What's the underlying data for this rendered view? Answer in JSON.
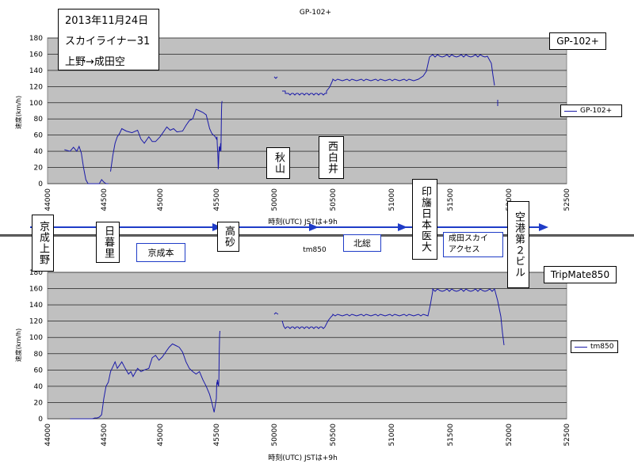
{
  "chart_data": [
    {
      "type": "line",
      "title": "GP-102+",
      "xlabel": "時刻(UTC) JSTは+9h",
      "ylabel": "速度(km/h)",
      "xlim": [
        44000,
        52500
      ],
      "ylim": [
        0,
        180
      ],
      "xticks": [
        "44000",
        "44500",
        "45000",
        "45500",
        "50000",
        "50500",
        "51000",
        "51500",
        "52000",
        "52500"
      ],
      "yticks": [
        "0",
        "20",
        "40",
        "60",
        "80",
        "100",
        "120",
        "140",
        "160",
        "180"
      ],
      "grid": true,
      "legend_position": "right",
      "series": [
        {
          "name": "GP-102+",
          "color": "#1a1aa8",
          "segments": [
            [
              [
                44150,
                42
              ],
              [
                44200,
                40
              ],
              [
                44230,
                45
              ],
              [
                44260,
                40
              ],
              [
                44280,
                46
              ],
              [
                44300,
                38
              ],
              [
                44320,
                20
              ],
              [
                44340,
                5
              ],
              [
                44360,
                0
              ],
              [
                44420,
                0
              ],
              [
                44460,
                0
              ],
              [
                44480,
                5
              ],
              [
                44500,
                2
              ],
              [
                44520,
                0
              ],
              [
                44540,
                0
              ]
            ],
            [
              [
                44560,
                15
              ],
              [
                44580,
                35
              ],
              [
                44600,
                50
              ],
              [
                44620,
                58
              ],
              [
                44640,
                62
              ],
              [
                44660,
                68
              ],
              [
                44700,
                65
              ],
              [
                44750,
                63
              ],
              [
                44800,
                66
              ],
              [
                44830,
                55
              ],
              [
                44860,
                50
              ],
              [
                44900,
                58
              ],
              [
                44930,
                52
              ],
              [
                44960,
                52
              ],
              [
                45000,
                58
              ],
              [
                45030,
                64
              ],
              [
                45060,
                70
              ],
              [
                45090,
                66
              ],
              [
                45120,
                68
              ],
              [
                45150,
                64
              ],
              [
                45200,
                65
              ],
              [
                45230,
                72
              ],
              [
                45260,
                78
              ],
              [
                45290,
                80
              ],
              [
                45320,
                92
              ],
              [
                45350,
                90
              ],
              [
                45380,
                88
              ],
              [
                45410,
                85
              ],
              [
                45440,
                68
              ],
              [
                45460,
                62
              ],
              [
                45490,
                58
              ],
              [
                45520,
                55
              ],
              [
                45550,
                58
              ],
              [
                45570,
                50
              ],
              [
                45590,
                42
              ],
              [
                45610,
                38
              ],
              [
                45630,
                30
              ],
              [
                45650,
                18
              ],
              [
                45670,
                25
              ],
              [
                45690,
                35
              ],
              [
                45710,
                42
              ],
              [
                45730,
                46
              ],
              [
                45750,
                42
              ],
              [
                45780,
                40
              ],
              [
                45800,
                45
              ],
              [
                45830,
                50
              ],
              [
                45860,
                40
              ],
              [
                45880,
                70
              ],
              [
                45900,
                90
              ],
              [
                45920,
                100
              ],
              [
                45950,
                102
              ]
            ]
          ]
        }
      ]
    },
    {
      "type": "line",
      "title": "tm850",
      "xlabel": "時刻(UTC) JSTは+9h",
      "ylabel": "速度(km/h)",
      "xlim": [
        44000,
        52500
      ],
      "ylim": [
        0,
        180
      ],
      "xticks": [
        "44000",
        "44500",
        "45000",
        "45500",
        "50000",
        "50500",
        "51000",
        "51500",
        "52000",
        "52500"
      ],
      "yticks": [
        "0",
        "20",
        "40",
        "60",
        "80",
        "100",
        "120",
        "140",
        "160",
        "180"
      ],
      "grid": true,
      "legend_position": "right",
      "series": [
        {
          "name": "tm850",
          "color": "#1a1aa8",
          "segments": [
            [
              [
                44200,
                0
              ],
              [
                44250,
                0
              ],
              [
                44300,
                0
              ],
              [
                44350,
                0
              ],
              [
                44400,
                0
              ],
              [
                44420,
                1
              ],
              [
                44440,
                1
              ],
              [
                44460,
                2
              ],
              [
                44480,
                5
              ],
              [
                44500,
                25
              ],
              [
                44520,
                40
              ],
              [
                44540,
                45
              ],
              [
                44560,
                58
              ],
              [
                44580,
                64
              ],
              [
                44600,
                70
              ],
              [
                44620,
                62
              ],
              [
                44640,
                66
              ],
              [
                44660,
                70
              ],
              [
                44690,
                62
              ],
              [
                44720,
                55
              ],
              [
                44740,
                58
              ],
              [
                44760,
                52
              ],
              [
                44780,
                57
              ],
              [
                44800,
                62
              ],
              [
                44830,
                58
              ],
              [
                44860,
                60
              ],
              [
                44900,
                62
              ],
              [
                44930,
                75
              ],
              [
                44960,
                78
              ],
              [
                44990,
                72
              ],
              [
                45020,
                76
              ],
              [
                45050,
                82
              ],
              [
                45080,
                88
              ],
              [
                45110,
                92
              ],
              [
                45140,
                90
              ],
              [
                45170,
                88
              ],
              [
                45200,
                82
              ],
              [
                45230,
                70
              ],
              [
                45260,
                62
              ],
              [
                45290,
                58
              ],
              [
                45320,
                55
              ],
              [
                45350,
                58
              ],
              [
                45380,
                48
              ],
              [
                45410,
                40
              ],
              [
                45440,
                30
              ],
              [
                45460,
                20
              ],
              [
                45480,
                8
              ],
              [
                45500,
                25
              ],
              [
                45520,
                38
              ],
              [
                45540,
                45
              ],
              [
                45560,
                42
              ],
              [
                45580,
                48
              ],
              [
                45610,
                45
              ],
              [
                45640,
                42
              ],
              [
                45670,
                40
              ],
              [
                45700,
                48
              ],
              [
                45720,
                80
              ],
              [
                45750,
                102
              ],
              [
                45780,
                108
              ]
            ]
          ]
        }
      ]
    }
  ],
  "top_chart": {
    "title": "GP-102+",
    "badge": "GP-102+",
    "legend": "GP-102+",
    "xlabel": "時刻(UTC) JSTは+9h",
    "ylabel": "速度(km/h)"
  },
  "bottom_chart": {
    "title": "tm850",
    "badge": "TripMate850",
    "legend": "tm850",
    "xlabel": "時刻(UTC) JSTは+9h",
    "ylabel": "速度(km/h)"
  },
  "info": {
    "date": "2013年11月24日",
    "train": "スカイライナー31",
    "route": "上野→成田空"
  },
  "stations": {
    "keisei_ueno": "京成上野",
    "nippori": "日暮里",
    "takasago": "高砂",
    "akiyama": "秋山",
    "nishi_shiroi": "西白井",
    "inba_nichi_idai": "印旛日本医大",
    "airport_t2": "空港第２ビル"
  },
  "lines": {
    "keisei_main": "京成本",
    "hokuso": "北総",
    "access_line_1": "成田スカイ",
    "access_line_2": "アクセス"
  },
  "colors": {
    "series": "#1a1aa8",
    "plot_bg": "#c0c0c0",
    "arrow": "#1f3cc7"
  }
}
